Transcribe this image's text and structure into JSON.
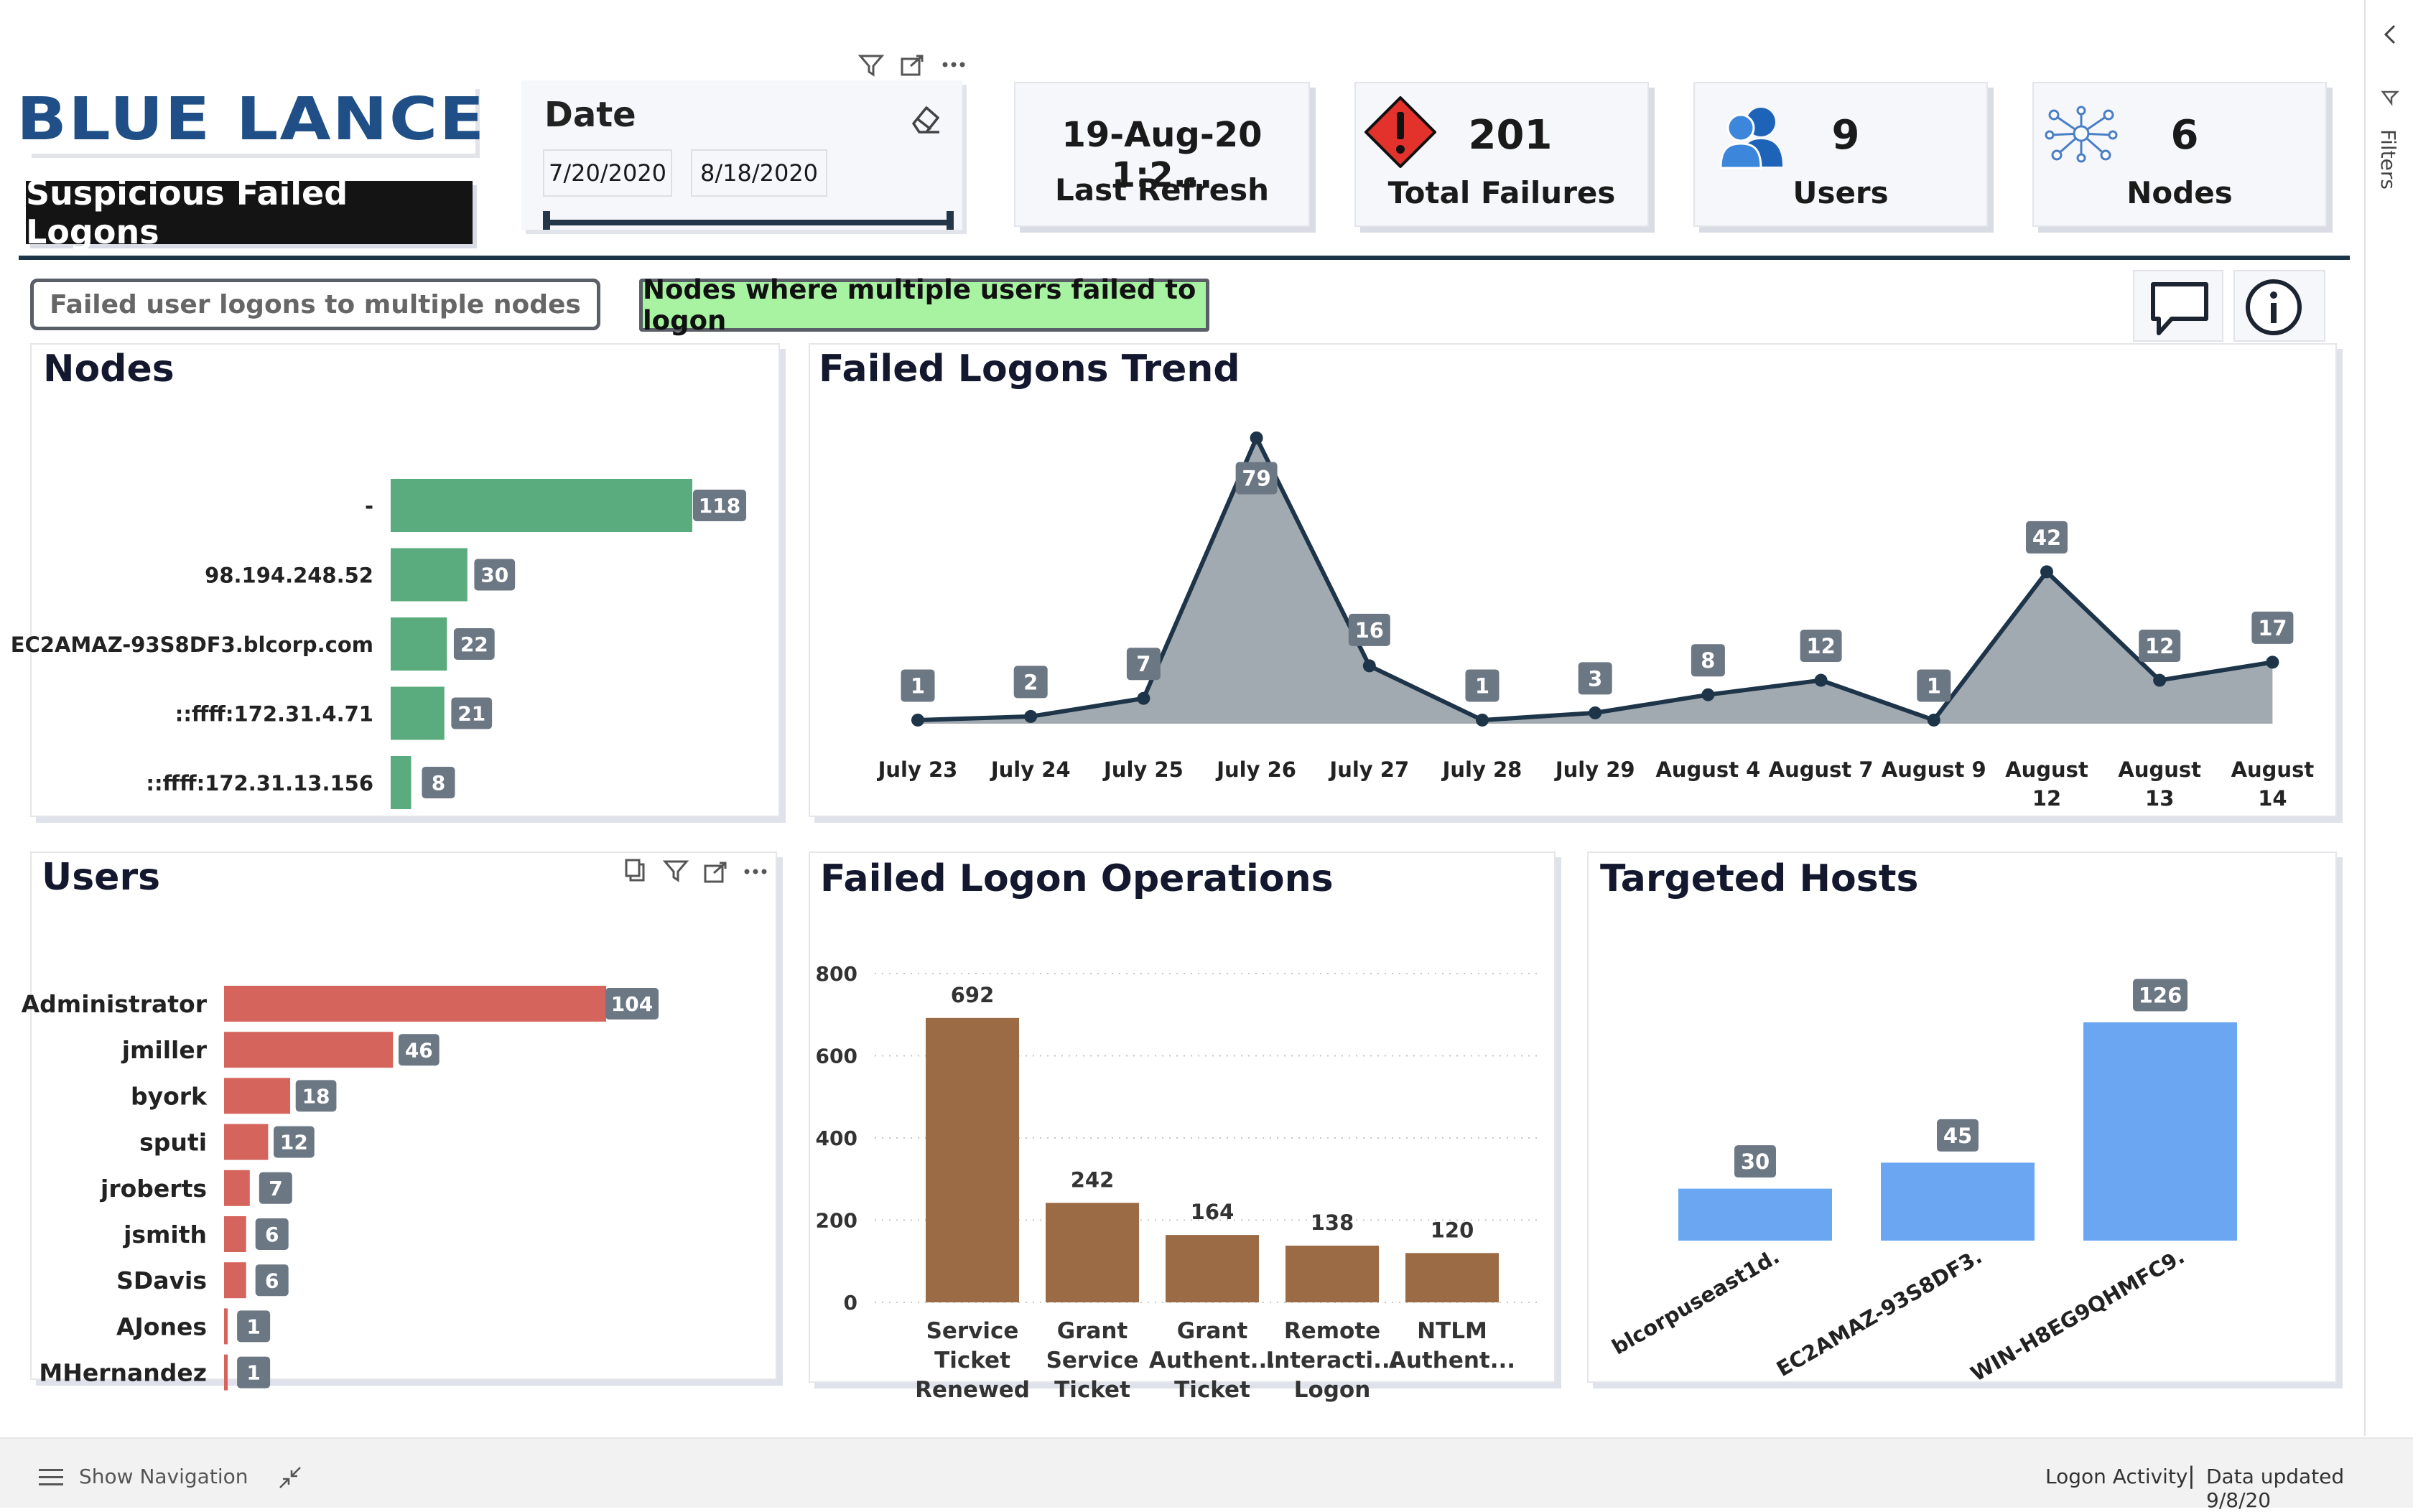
{
  "header": {
    "logo_text": "BLUE LANCE",
    "report_title": "Suspicious Failed Logons",
    "date_slicer": {
      "label": "Date",
      "start": "7/20/2020",
      "end": "8/18/2020"
    },
    "kpis": {
      "last_refresh": {
        "value": "19-Aug-20 1:2...",
        "label": "Last Refresh"
      },
      "total_failures": {
        "value": "201",
        "label": "Total Failures"
      },
      "users": {
        "value": "9",
        "label": "Users"
      },
      "nodes": {
        "value": "6",
        "label": "Nodes"
      }
    }
  },
  "buttons": {
    "multi_nodes": "Failed user logons to multiple nodes",
    "multi_users": "Nodes where multiple users failed to logon"
  },
  "filters_pane_label": "Filters",
  "footer": {
    "show_navigation": "Show Navigation",
    "page_name": "Logon Activity",
    "separator": "|",
    "data_updated": "Data updated 9/8/20"
  },
  "colors": {
    "nodes_bar": "#5aab7e",
    "users_bar": "#d5645d",
    "operations_bar": "#9b6b45",
    "hosts_bar": "#6aa6f1",
    "trend_area": "#a2aab1",
    "trend_line": "#1d3449",
    "label_box": "#6c7784",
    "active_button": "#a7f3a2",
    "brand_blue": "#1f4f86",
    "alert_red": "#e3322c"
  },
  "chart_data": [
    {
      "id": "nodes",
      "type": "bar",
      "orientation": "horizontal",
      "title": "Nodes",
      "categories": [
        "-",
        "98.194.248.52",
        "EC2AMAZ-93S8DF3.blcorp.com",
        "::ffff:172.31.4.71",
        "::ffff:172.31.13.156"
      ],
      "values": [
        118,
        30,
        22,
        21,
        8
      ]
    },
    {
      "id": "trend",
      "type": "area",
      "title": "Failed Logons Trend",
      "categories": [
        "July 23",
        "July 24",
        "July 25",
        "July 26",
        "July 27",
        "July 28",
        "July 29",
        "August 4",
        "August 7",
        "August 9",
        "August 12",
        "August 13",
        "August 14"
      ],
      "values": [
        1,
        2,
        7,
        79,
        16,
        1,
        3,
        8,
        12,
        1,
        42,
        12,
        17
      ]
    },
    {
      "id": "users",
      "type": "bar",
      "orientation": "horizontal",
      "title": "Users",
      "categories": [
        "Administrator",
        "jmiller",
        "byork",
        "sputi",
        "jroberts",
        "jsmith",
        "SDavis",
        "AJones",
        "MHernandez"
      ],
      "values": [
        104,
        46,
        18,
        12,
        7,
        6,
        6,
        1,
        1
      ]
    },
    {
      "id": "operations",
      "type": "bar",
      "title": "Failed Logon Operations",
      "categories": [
        [
          "Service",
          "Ticket",
          "Renewed"
        ],
        [
          "Grant",
          "Service",
          "Ticket"
        ],
        [
          "Grant",
          "Authent...",
          "Ticket"
        ],
        [
          "Remote",
          "Interacti...",
          "Logon"
        ],
        [
          "NTLM",
          "Authent..."
        ]
      ],
      "values": [
        692,
        242,
        164,
        138,
        120
      ],
      "ylim": [
        0,
        800
      ],
      "yticks": [
        0,
        200,
        400,
        600,
        800
      ],
      "grid": true
    },
    {
      "id": "hosts",
      "type": "bar",
      "title": "Targeted Hosts",
      "categories": [
        "blcorpuseast1d.",
        "EC2AMAZ-93S8DF3.",
        "WIN-H8EG9QHMFC9."
      ],
      "values": [
        30,
        45,
        126
      ]
    }
  ]
}
